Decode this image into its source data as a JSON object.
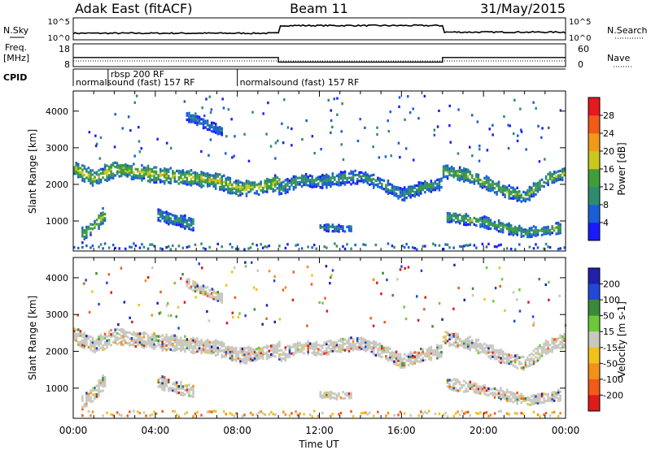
{
  "header": {
    "title_left": "Adak East (fitACF)",
    "title_center": "Beam 11",
    "title_right": "31/May/2015"
  },
  "chart_data": {
    "type": "heatmap",
    "xlabel": "Time UT",
    "x_ticks": [
      "00:00",
      "04:00",
      "08:00",
      "12:00",
      "16:00",
      "20:00",
      "00:00"
    ],
    "xlim_hours": [
      0,
      24
    ],
    "top_panels": {
      "nsky": {
        "label": "N.Sky",
        "right_label": "N.Search",
        "left_ticks": [
          "10^5",
          "10^0"
        ],
        "right_ticks": [
          "10^5",
          "10^0"
        ],
        "trace_hours": [
          0,
          10,
          10,
          18,
          18,
          24
        ],
        "trace_level_frac": [
          0.3,
          0.4,
          0.65,
          0.62,
          0.35,
          0.32
        ]
      },
      "freq": {
        "label_line1": "Freq.",
        "label_line2": "[MHz]",
        "right_label": "Nave",
        "left_ticks": [
          "18",
          "8"
        ],
        "right_ticks": [
          "60",
          "0"
        ],
        "freq_hours": [
          0,
          10,
          10,
          18,
          18,
          24
        ],
        "freq_mhz": [
          12,
          12,
          10,
          10,
          12,
          12
        ],
        "nave_hours": [
          0,
          24
        ],
        "nave": [
          15,
          15
        ]
      },
      "cpid": {
        "label": "CPID",
        "segments": [
          {
            "start_hour": 0.0,
            "end_hour": 1.7,
            "text": "normalsound (fast) 157 RF"
          },
          {
            "start_hour": 1.7,
            "end_hour": 8.0,
            "text": "rbsp 200 RF"
          },
          {
            "start_hour": 8.0,
            "end_hour": 24.0,
            "text": "normalsound (fast) 157 RF"
          }
        ]
      }
    },
    "power_panel": {
      "ylabel": "Slant Range [km]",
      "ylim_km": [
        180,
        4550
      ],
      "y_ticks": [
        1000,
        2000,
        3000,
        4000
      ],
      "colorbar_label": "Power [dB]",
      "colorbar_ticks": [
        4,
        8,
        12,
        16,
        20,
        24,
        28
      ],
      "colorbar_range": [
        0,
        32
      ],
      "colors": [
        "#1a1aff",
        "#1a5ed6",
        "#2f8b6f",
        "#3f9e3a",
        "#c9c81e",
        "#f29a18",
        "#f25a1a",
        "#e6191e"
      ]
    },
    "velocity_panel": {
      "ylabel": "Slant Range [km]",
      "ylim_km": [
        180,
        4550
      ],
      "y_ticks": [
        1000,
        2000,
        3000,
        4000
      ],
      "colorbar_label": "Velocity [m s-1]",
      "colorbar_ticks": [
        "200",
        "100",
        "50",
        "15",
        "-15",
        "-50",
        "-100",
        "-200"
      ],
      "colors": [
        "#2020a8",
        "#2248d8",
        "#3a8a3a",
        "#6cc83a",
        "#c8c8c0",
        "#f2c21a",
        "#f2901a",
        "#f25a1a",
        "#e01a1a"
      ],
      "ground_scatter_color": "#c8c8c0"
    },
    "echo_bands": [
      {
        "hours": [
          0,
          1,
          2,
          3,
          4,
          5,
          6,
          7,
          8,
          9,
          10
        ],
        "range_km": [
          2420,
          2150,
          2400,
          2330,
          2250,
          2200,
          2150,
          2080,
          1880,
          1900,
          2050
        ],
        "width_km": 180,
        "power_db": 17
      },
      {
        "hours": [
          10,
          11,
          12,
          13,
          14,
          15,
          16,
          17,
          18
        ],
        "range_km": [
          1850,
          2100,
          2050,
          2150,
          2200,
          2000,
          1700,
          1900,
          2000
        ],
        "width_km": 150,
        "power_db": 11
      },
      {
        "hours": [
          18,
          19,
          20,
          21,
          22,
          23,
          24
        ],
        "range_km": [
          2350,
          2250,
          2050,
          1800,
          1650,
          2100,
          2300
        ],
        "width_km": 150,
        "power_db": 15
      },
      {
        "hours": [
          0.4,
          1.0,
          1.6
        ],
        "range_km": [
          600,
          850,
          1250
        ],
        "width_km": 170,
        "power_db": 16
      },
      {
        "hours": [
          4.1,
          5.0,
          5.8
        ],
        "range_km": [
          1150,
          1000,
          900
        ],
        "width_km": 140,
        "power_db": 11
      },
      {
        "hours": [
          12.0,
          12.8,
          13.5
        ],
        "range_km": [
          820,
          780,
          800
        ],
        "width_km": 80,
        "power_db": 10
      },
      {
        "hours": [
          18.2,
          20.0,
          22.0,
          23.8
        ],
        "range_km": [
          1100,
          950,
          650,
          800
        ],
        "width_km": 120,
        "power_db": 14
      },
      {
        "hours": [
          5.5,
          6.3,
          7.2
        ],
        "range_km": [
          3850,
          3650,
          3450
        ],
        "width_km": 110,
        "power_db": 8
      }
    ]
  }
}
